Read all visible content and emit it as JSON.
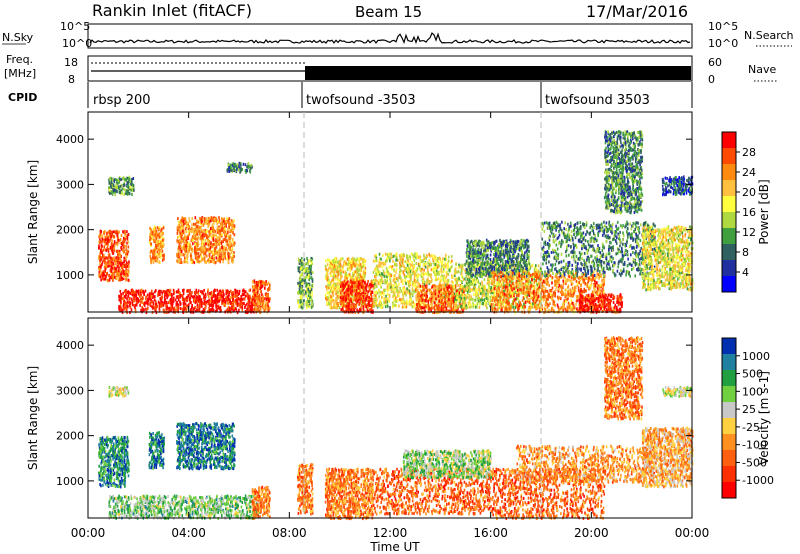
{
  "header": {
    "station": "Rankin Inlet (fitACF)",
    "beam": "Beam 15",
    "date": "17/Mar/2016"
  },
  "strip_labels": {
    "nsky": "N.Sky",
    "nsky_ticks": [
      "10^5",
      "10^0"
    ],
    "nsearch": "N.Search",
    "nsearch_ticks": [
      "10^5",
      "10^0"
    ],
    "freq_top": "Freq.",
    "freq_unit": "[MHz]",
    "freq_ticks": [
      "18",
      "8"
    ],
    "nave": "Nave",
    "nave_ticks": [
      "60",
      "0"
    ],
    "cpid": "CPID"
  },
  "cpid_segments": [
    {
      "label": "rbsp 200",
      "start": 0.0
    },
    {
      "label": "twofsound -3503",
      "start": 8.5
    },
    {
      "label": "twofsound 3503",
      "start": 18.0
    }
  ],
  "x_axis": {
    "label": "Time UT",
    "ticks": [
      "00:00",
      "04:00",
      "08:00",
      "12:00",
      "16:00",
      "20:00",
      "00:00"
    ],
    "range_hours": [
      0,
      24
    ]
  },
  "chart_data": [
    {
      "type": "heatmap",
      "title": "",
      "xlabel": "Time UT",
      "ylabel": "Slant Range [km]",
      "yticks": [
        1000,
        2000,
        3000,
        4000
      ],
      "ylim": [
        180,
        4600
      ],
      "xlim": [
        0,
        24
      ],
      "colorbar": {
        "label": "Power [dB]",
        "ticks": [
          "28",
          "24",
          "20",
          "16",
          "12",
          "8",
          "4"
        ],
        "colors": [
          "#ff0000",
          "#ff4a00",
          "#ff8a10",
          "#ffc040",
          "#ffff40",
          "#b0d840",
          "#40a040",
          "#306060",
          "#2030a0",
          "#0000ff"
        ]
      },
      "mode": "power",
      "regions": [
        {
          "t0": 0.4,
          "t1": 1.6,
          "r0": 900,
          "r1": 2000,
          "level": 0.85
        },
        {
          "t0": 0.8,
          "t1": 1.8,
          "r0": 2800,
          "r1": 3200,
          "level": 0.35
        },
        {
          "t0": 1.2,
          "t1": 6.8,
          "r0": 200,
          "r1": 700,
          "level": 0.95
        },
        {
          "t0": 2.4,
          "t1": 3.0,
          "r0": 1300,
          "r1": 2100,
          "level": 0.7
        },
        {
          "t0": 3.5,
          "t1": 5.8,
          "r0": 1300,
          "r1": 2300,
          "level": 0.75
        },
        {
          "t0": 5.5,
          "t1": 6.5,
          "r0": 3300,
          "r1": 3500,
          "level": 0.3
        },
        {
          "t0": 6.5,
          "t1": 7.2,
          "r0": 200,
          "r1": 900,
          "level": 0.8
        },
        {
          "t0": 8.3,
          "t1": 8.9,
          "r0": 300,
          "r1": 1400,
          "level": 0.4
        },
        {
          "t0": 9.4,
          "t1": 11.0,
          "r0": 300,
          "r1": 1400,
          "level": 0.6
        },
        {
          "t0": 10.0,
          "t1": 11.3,
          "r0": 200,
          "r1": 900,
          "level": 0.9
        },
        {
          "t0": 11.3,
          "t1": 14.5,
          "r0": 300,
          "r1": 1500,
          "level": 0.55
        },
        {
          "t0": 13.0,
          "t1": 15.0,
          "r0": 200,
          "r1": 800,
          "level": 0.8
        },
        {
          "t0": 14.5,
          "t1": 18.0,
          "r0": 300,
          "r1": 1300,
          "level": 0.5
        },
        {
          "t0": 15.0,
          "t1": 17.5,
          "r0": 1000,
          "r1": 1800,
          "level": 0.3
        },
        {
          "t0": 16.0,
          "t1": 20.5,
          "r0": 200,
          "r1": 1100,
          "level": 0.75
        },
        {
          "t0": 18.0,
          "t1": 22.5,
          "r0": 1000,
          "r1": 2200,
          "level": 0.3
        },
        {
          "t0": 19.5,
          "t1": 21.2,
          "r0": 200,
          "r1": 600,
          "level": 0.95
        },
        {
          "t0": 20.5,
          "t1": 22.0,
          "r0": 2400,
          "r1": 4200,
          "level": 0.3
        },
        {
          "t0": 22.0,
          "t1": 24.0,
          "r0": 700,
          "r1": 2100,
          "level": 0.55
        },
        {
          "t0": 22.8,
          "t1": 24.0,
          "r0": 2800,
          "r1": 3200,
          "level": 0.2
        }
      ]
    },
    {
      "type": "heatmap",
      "title": "",
      "xlabel": "Time UT",
      "ylabel": "Slant Range [km]",
      "yticks": [
        1000,
        2000,
        3000,
        4000
      ],
      "ylim": [
        180,
        4600
      ],
      "xlim": [
        0,
        24
      ],
      "colorbar": {
        "label": "Velocity [m s-1]",
        "ticks": [
          "1000",
          "500",
          "100",
          "25",
          "-25",
          "-100",
          "-500",
          "-1000"
        ],
        "colors": [
          "#0030b0",
          "#2080a0",
          "#20a040",
          "#70d040",
          "#c8c8c8",
          "#ffd040",
          "#ff9020",
          "#ff6010",
          "#ff3000",
          "#ff0000"
        ]
      },
      "mode": "velocity",
      "regions": [
        {
          "t0": 0.4,
          "t1": 1.6,
          "r0": 900,
          "r1": 2000,
          "level": 0.2
        },
        {
          "t0": 0.8,
          "t1": 1.6,
          "r0": 2900,
          "r1": 3100,
          "level": 0.45
        },
        {
          "t0": 0.8,
          "t1": 6.8,
          "r0": 200,
          "r1": 700,
          "level": 0.35
        },
        {
          "t0": 2.4,
          "t1": 3.0,
          "r0": 1300,
          "r1": 2100,
          "level": 0.15
        },
        {
          "t0": 3.5,
          "t1": 5.8,
          "r0": 1300,
          "r1": 2300,
          "level": 0.15
        },
        {
          "t0": 6.5,
          "t1": 7.2,
          "r0": 200,
          "r1": 900,
          "level": 0.7
        },
        {
          "t0": 8.3,
          "t1": 8.9,
          "r0": 300,
          "r1": 1400,
          "level": 0.7
        },
        {
          "t0": 9.4,
          "t1": 11.3,
          "r0": 200,
          "r1": 1300,
          "level": 0.7
        },
        {
          "t0": 11.3,
          "t1": 16.0,
          "r0": 300,
          "r1": 1300,
          "level": 0.75
        },
        {
          "t0": 12.5,
          "t1": 16.0,
          "r0": 1100,
          "r1": 1700,
          "level": 0.4
        },
        {
          "t0": 16.0,
          "t1": 20.5,
          "r0": 200,
          "r1": 1300,
          "level": 0.75
        },
        {
          "t0": 17.0,
          "t1": 22.5,
          "r0": 1000,
          "r1": 1800,
          "level": 0.65
        },
        {
          "t0": 20.5,
          "t1": 22.0,
          "r0": 2400,
          "r1": 4200,
          "level": 0.7
        },
        {
          "t0": 22.0,
          "t1": 24.0,
          "r0": 900,
          "r1": 2200,
          "level": 0.6
        },
        {
          "t0": 22.8,
          "t1": 24.0,
          "r0": 2900,
          "r1": 3100,
          "level": 0.45
        }
      ]
    }
  ]
}
